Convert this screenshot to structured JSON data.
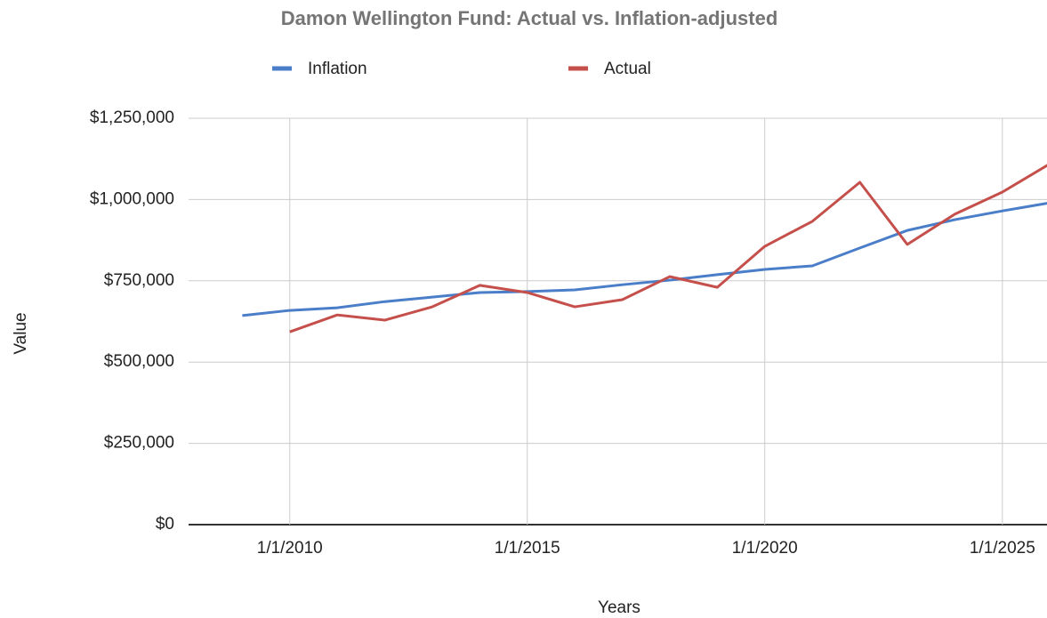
{
  "chart_data": {
    "type": "line",
    "title": "Damon Wellington Fund:  Actual vs. Inflation-adjusted",
    "x_label": "Years",
    "y_label": "Value",
    "x": [
      "1/1/2009",
      "1/1/2010",
      "1/1/2011",
      "1/1/2012",
      "1/1/2013",
      "1/1/2014",
      "1/1/2015",
      "1/1/2016",
      "1/1/2017",
      "1/1/2018",
      "1/1/2019",
      "1/1/2020",
      "1/1/2021",
      "1/1/2022",
      "1/1/2023",
      "1/1/2024",
      "1/1/2025",
      "1/1/2026"
    ],
    "series": [
      {
        "name": "Inflation",
        "color": "#4a7ec8",
        "values": [
          643000,
          659000,
          667000,
          686000,
          700000,
          714000,
          717000,
          722000,
          738000,
          752000,
          769000,
          785000,
          796000,
          851000,
          905000,
          938000,
          965000,
          990000
        ]
      },
      {
        "name": "Actual",
        "color": "#c5504b",
        "values": [
          null,
          593000,
          645000,
          629000,
          670000,
          736000,
          714000,
          670000,
          692000,
          763000,
          730000,
          856000,
          933000,
          1053000,
          862000,
          955000,
          1023000,
          1110000
        ]
      }
    ],
    "xlim": [
      "11/15/2007",
      "12/10/2025"
    ],
    "xticks": [
      "1/1/2010",
      "1/1/2015",
      "1/1/2020",
      "1/1/2025"
    ],
    "ylim": [
      0,
      1250000
    ],
    "yticks": [
      {
        "value": 0,
        "label": "$0"
      },
      {
        "value": 250000,
        "label": "$250,000"
      },
      {
        "value": 500000,
        "label": "$500,000"
      },
      {
        "value": 750000,
        "label": "$750,000"
      },
      {
        "value": 1000000,
        "label": "$1,000,000"
      },
      {
        "value": 1250000,
        "label": "$1,250,000"
      }
    ],
    "grid": true,
    "legend": "top"
  }
}
